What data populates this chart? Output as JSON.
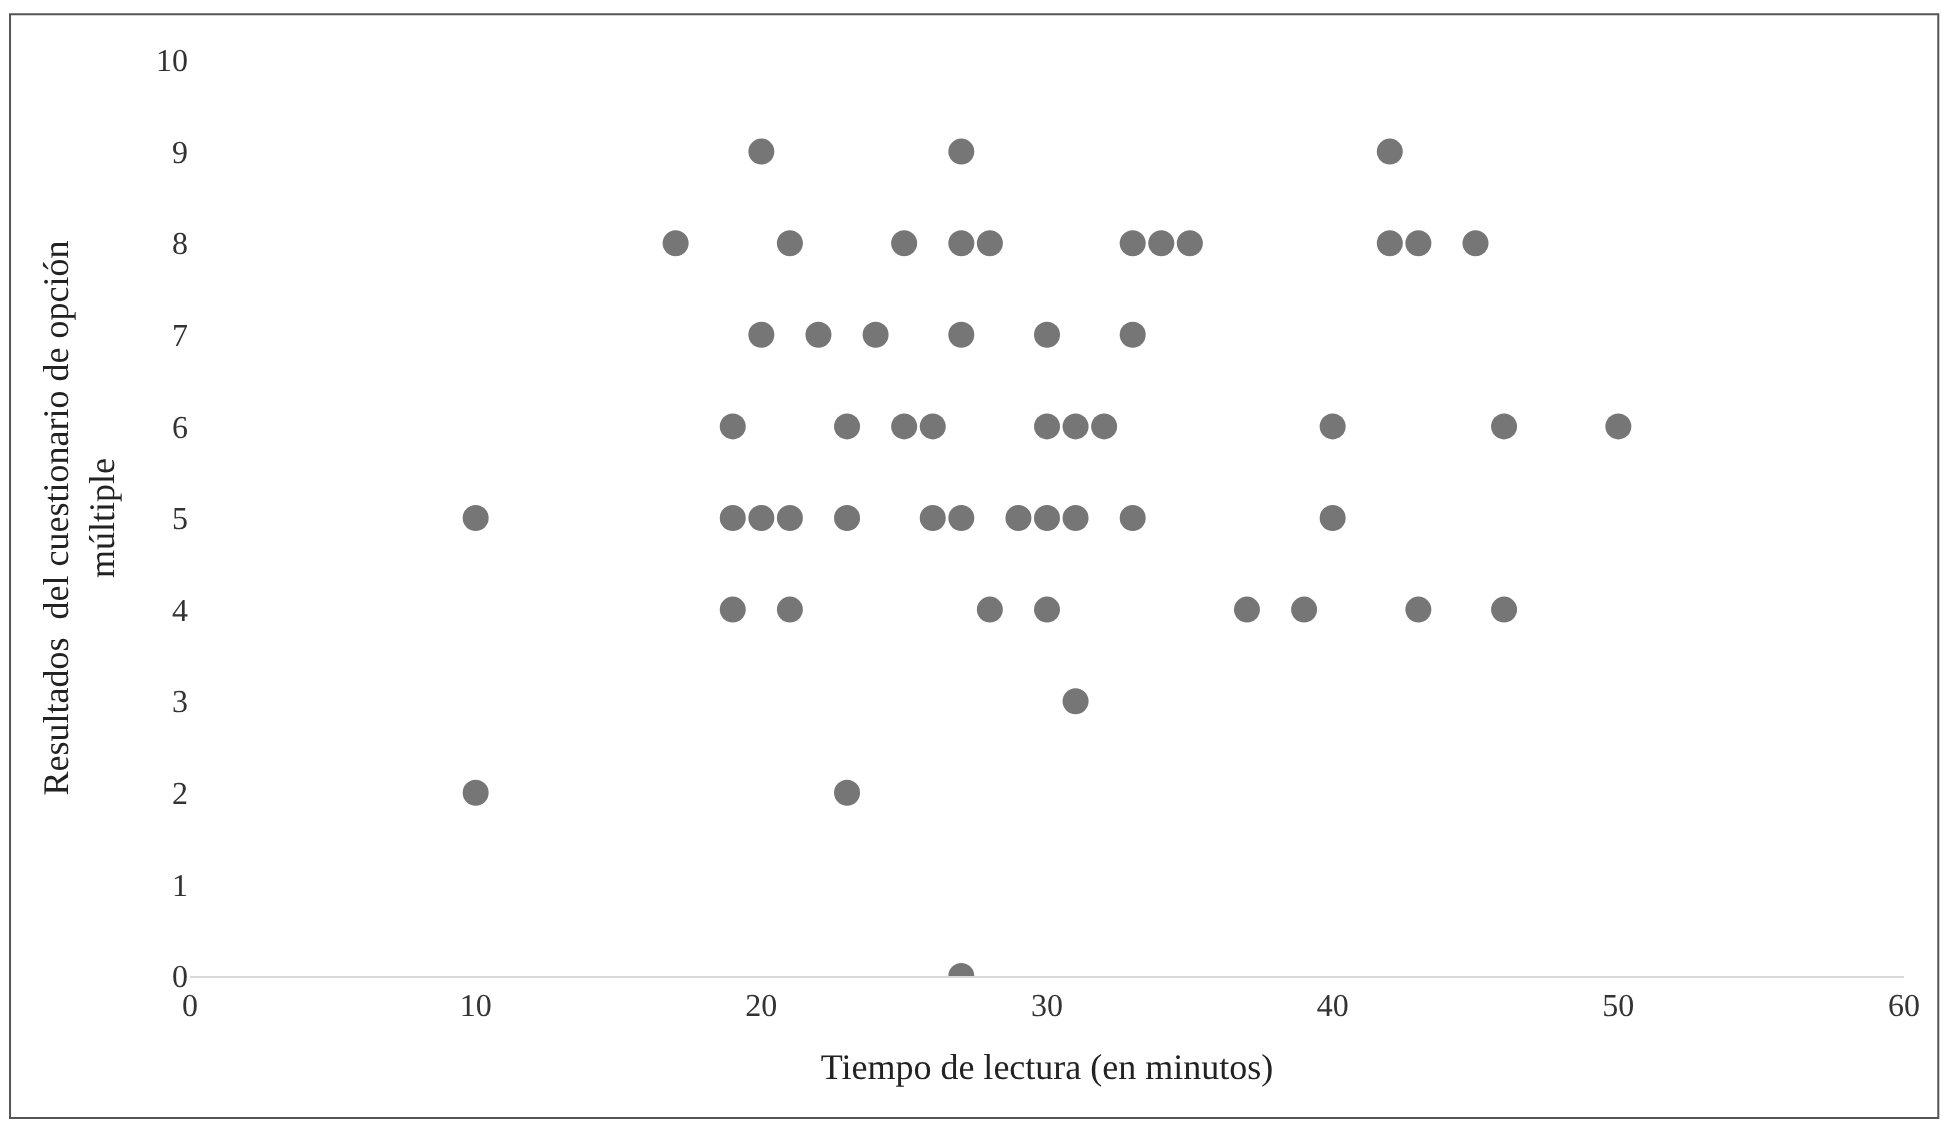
{
  "chart_data": {
    "type": "scatter",
    "xlabel": "Tiempo de lectura (en minutos)",
    "ylabel": "Resultados  del cuestionario de opción múltiple",
    "x": [
      10,
      10,
      17,
      21,
      25,
      27,
      28,
      33,
      34,
      35,
      42,
      43,
      45,
      20,
      27,
      42,
      20,
      22,
      24,
      27,
      30,
      33,
      19,
      23,
      25,
      26,
      30,
      31,
      32,
      40,
      46,
      50,
      19,
      20,
      21,
      23,
      26,
      27,
      29,
      30,
      31,
      33,
      40,
      19,
      21,
      28,
      30,
      37,
      39,
      43,
      46,
      31,
      23,
      27
    ],
    "series": [
      {
        "color": "#767676",
        "values": [
          5,
          2,
          8,
          8,
          8,
          8,
          8,
          8,
          8,
          8,
          8,
          8,
          8,
          9,
          9,
          9,
          7,
          7,
          7,
          7,
          7,
          7,
          6,
          6,
          6,
          6,
          6,
          6,
          6,
          6,
          6,
          6,
          5,
          5,
          5,
          5,
          5,
          5,
          5,
          5,
          5,
          5,
          5,
          4,
          4,
          4,
          4,
          4,
          4,
          4,
          4,
          3,
          2,
          0
        ]
      }
    ],
    "xlim": [
      0,
      60
    ],
    "xticks": [
      0,
      10,
      20,
      30,
      40,
      50,
      60
    ],
    "ylim": [
      0,
      10
    ],
    "yticks": [
      0,
      1,
      2,
      3,
      4,
      5,
      6,
      7,
      8,
      9,
      10
    ],
    "grid": false,
    "marker": "circle"
  }
}
